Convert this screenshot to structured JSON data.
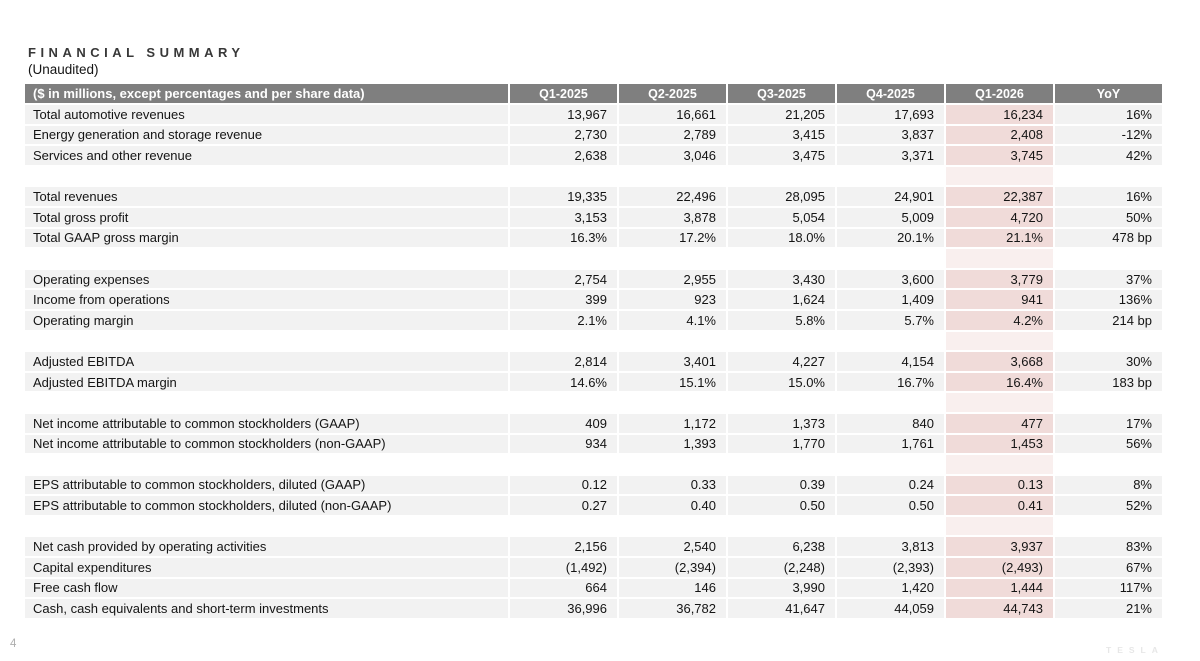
{
  "page": {
    "title": "FINANCIAL SUMMARY",
    "subtitle": "(Unaudited)",
    "page_number": "4",
    "watermark": "TESLA"
  },
  "colors": {
    "header_bg": "#7f7f7f",
    "header_text": "#ffffff",
    "row_bg": "#f2f2f2",
    "highlight_cell_bg": "#f0dbd9",
    "highlight_gap_bg": "#f9efee",
    "body_text": "#141414"
  },
  "table": {
    "header_label": "($ in millions, except percentages and per share data)",
    "columns": [
      "Q1-2025",
      "Q2-2025",
      "Q3-2025",
      "Q4-2025",
      "Q1-2026",
      "YoY"
    ],
    "highlight_column": "Q1-2026",
    "sections": [
      {
        "rows": [
          {
            "label": "Total automotive revenues",
            "values": [
              "13,967",
              "16,661",
              "21,205",
              "17,693",
              "16,234",
              "16%"
            ]
          },
          {
            "label": "Energy generation and storage revenue",
            "values": [
              "2,730",
              "2,789",
              "3,415",
              "3,837",
              "2,408",
              "-12%"
            ]
          },
          {
            "label": "Services and other revenue",
            "values": [
              "2,638",
              "3,046",
              "3,475",
              "3,371",
              "3,745",
              "42%"
            ]
          }
        ]
      },
      {
        "rows": [
          {
            "label": "Total revenues",
            "values": [
              "19,335",
              "22,496",
              "28,095",
              "24,901",
              "22,387",
              "16%"
            ]
          },
          {
            "label": "Total gross profit",
            "values": [
              "3,153",
              "3,878",
              "5,054",
              "5,009",
              "4,720",
              "50%"
            ]
          },
          {
            "label": "Total GAAP gross margin",
            "values": [
              "16.3%",
              "17.2%",
              "18.0%",
              "20.1%",
              "21.1%",
              "478 bp"
            ]
          }
        ]
      },
      {
        "rows": [
          {
            "label": "Operating expenses",
            "values": [
              "2,754",
              "2,955",
              "3,430",
              "3,600",
              "3,779",
              "37%"
            ]
          },
          {
            "label": "Income from operations",
            "values": [
              "399",
              "923",
              "1,624",
              "1,409",
              "941",
              "136%"
            ]
          },
          {
            "label": "Operating margin",
            "values": [
              "2.1%",
              "4.1%",
              "5.8%",
              "5.7%",
              "4.2%",
              "214 bp"
            ]
          }
        ]
      },
      {
        "rows": [
          {
            "label": "Adjusted EBITDA",
            "values": [
              "2,814",
              "3,401",
              "4,227",
              "4,154",
              "3,668",
              "30%"
            ]
          },
          {
            "label": "Adjusted EBITDA margin",
            "values": [
              "14.6%",
              "15.1%",
              "15.0%",
              "16.7%",
              "16.4%",
              "183 bp"
            ]
          }
        ]
      },
      {
        "rows": [
          {
            "label": "Net income attributable to common stockholders (GAAP)",
            "values": [
              "409",
              "1,172",
              "1,373",
              "840",
              "477",
              "17%"
            ]
          },
          {
            "label": "Net income attributable to common stockholders (non-GAAP)",
            "values": [
              "934",
              "1,393",
              "1,770",
              "1,761",
              "1,453",
              "56%"
            ]
          }
        ]
      },
      {
        "rows": [
          {
            "label": "EPS attributable to common stockholders, diluted (GAAP)",
            "values": [
              "0.12",
              "0.33",
              "0.39",
              "0.24",
              "0.13",
              "8%"
            ]
          },
          {
            "label": "EPS attributable to common stockholders, diluted (non-GAAP)",
            "values": [
              "0.27",
              "0.40",
              "0.50",
              "0.50",
              "0.41",
              "52%"
            ]
          }
        ]
      },
      {
        "rows": [
          {
            "label": "Net cash provided by operating activities",
            "values": [
              "2,156",
              "2,540",
              "6,238",
              "3,813",
              "3,937",
              "83%"
            ]
          },
          {
            "label": "Capital expenditures",
            "values": [
              "(1,492)",
              "(2,394)",
              "(2,248)",
              "(2,393)",
              "(2,493)",
              "67%"
            ]
          },
          {
            "label": "Free cash flow",
            "values": [
              "664",
              "146",
              "3,990",
              "1,420",
              "1,444",
              "117%"
            ]
          },
          {
            "label": "Cash, cash equivalents and short-term investments",
            "values": [
              "36,996",
              "36,782",
              "41,647",
              "44,059",
              "44,743",
              "21%"
            ]
          }
        ]
      }
    ]
  }
}
